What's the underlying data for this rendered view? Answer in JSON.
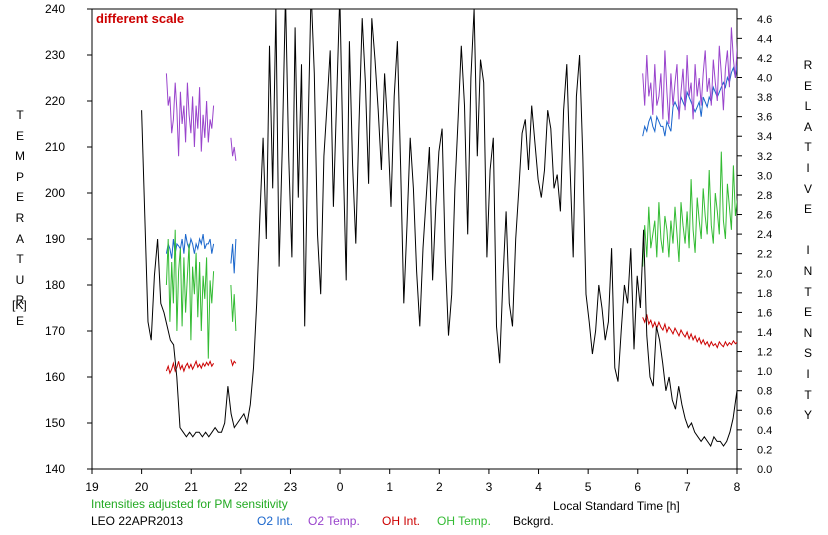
{
  "chart_data": {
    "type": "line",
    "station_date": "LEO 22APR2013",
    "note": "different scale",
    "note_color": "#cc0000",
    "subtitle": "Intensities adjusted for PM sensitivity",
    "subtitle_color": "#22aa22",
    "xlabel": "Local Standard Time [h]",
    "ylabel_left": "TEMPERATURE",
    "ylabel_left_unit": "[K]",
    "ylabel_right": "RELATIVE INTENSITY",
    "x_ticks": [
      "19",
      "20",
      "21",
      "22",
      "23",
      "0",
      "1",
      "2",
      "3",
      "4",
      "5",
      "6",
      "7",
      "8"
    ],
    "y_left_ticks": [
      "140",
      "150",
      "160",
      "170",
      "180",
      "190",
      "200",
      "210",
      "220",
      "230",
      "240"
    ],
    "y_right_ticks": [
      "0.0",
      "0.2",
      "0.4",
      "0.6",
      "0.8",
      "1.0",
      "1.2",
      "1.4",
      "1.6",
      "1.8",
      "2.0",
      "2.2",
      "2.4",
      "2.6",
      "2.8",
      "3.0",
      "3.2",
      "3.4",
      "3.6",
      "3.8",
      "4.0",
      "4.2",
      "4.4",
      "4.6"
    ],
    "xlim": [
      19,
      32
    ],
    "ylim_left": [
      140,
      240
    ],
    "ylim_right": [
      0.0,
      4.7
    ],
    "grid": false,
    "legend": [
      {
        "label": "O2 Int.",
        "color": "#1a66cc"
      },
      {
        "label": "O2 Temp.",
        "color": "#9944cc"
      },
      {
        "label": "OH Int.",
        "color": "#cc0000"
      },
      {
        "label": "OH Temp.",
        "color": "#33bb33"
      },
      {
        "label": "Bckgrd.",
        "color": "#000000"
      }
    ],
    "series": [
      {
        "name": "O2 Int.",
        "axis": "right",
        "color": "#1a66cc",
        "segments": [
          {
            "x0": 20.5,
            "x1": 21.45,
            "values": [
              2.2,
              2.3,
              2.25,
              2.15,
              2.35,
              2.2,
              2.3,
              2.28,
              2.25,
              2.35,
              2.2,
              2.4,
              2.3,
              2.25,
              2.35,
              2.3,
              2.2,
              2.3,
              2.25,
              2.35,
              2.3,
              2.4,
              2.25,
              2.3,
              2.3,
              2.35,
              2.2,
              2.3
            ]
          },
          {
            "x0": 21.8,
            "x1": 21.9,
            "values": [
              2.1,
              2.3,
              2.0,
              2.35
            ]
          },
          {
            "x0": 30.1,
            "x1": 32.05,
            "values": [
              3.4,
              3.5,
              3.45,
              3.55,
              3.6,
              3.5,
              3.45,
              3.6,
              3.55,
              3.5,
              3.5,
              3.4,
              3.55,
              3.5,
              3.45,
              3.7,
              3.75,
              3.7,
              3.65,
              3.8,
              3.75,
              3.7,
              3.85,
              3.8,
              3.75,
              3.7,
              3.65,
              3.7,
              3.75,
              3.6,
              3.8,
              3.75,
              3.7,
              3.8,
              3.75,
              3.9,
              3.85,
              3.8,
              3.85,
              3.9,
              3.95,
              3.9,
              4.0,
              3.95,
              4.05,
              4.1,
              4.0,
              4.15,
              4.2
            ]
          }
        ]
      },
      {
        "name": "O2 Temp.",
        "axis": "left",
        "color": "#9944cc",
        "segments": [
          {
            "x0": 20.5,
            "x1": 21.45,
            "values": [
              226,
              219,
              221,
              213,
              216,
              224,
              218,
              208,
              222,
              215,
              219,
              211,
              224,
              217,
              213,
              221,
              210,
              219,
              214,
              223,
              209,
              217,
              212,
              220,
              211,
              216,
              214,
              219
            ]
          },
          {
            "x0": 21.8,
            "x1": 21.9,
            "values": [
              212,
              208,
              210,
              207
            ]
          },
          {
            "x0": 30.1,
            "x1": 32.05,
            "values": [
              226,
              219,
              230,
              221,
              224,
              217,
              228,
              219,
              221,
              226,
              216,
              231,
              222,
              215,
              226,
              219,
              224,
              228,
              216,
              222,
              227,
              218,
              230,
              221,
              224,
              216,
              228,
              221,
              225,
              219,
              226,
              231,
              222,
              225,
              219,
              229,
              224,
              220,
              232,
              226,
              218,
              227,
              231,
              223,
              236,
              229,
              225,
              233,
              222
            ]
          }
        ]
      },
      {
        "name": "OH Int.",
        "axis": "right",
        "color": "#cc0000",
        "segments": [
          {
            "x0": 20.5,
            "x1": 21.45,
            "values": [
              1.0,
              1.05,
              0.98,
              1.02,
              1.08,
              1.0,
              1.04,
              1.1,
              1.02,
              1.06,
              1.0,
              1.05,
              1.08,
              1.03,
              1.07,
              1.02,
              1.06,
              1.1,
              1.04,
              1.07,
              1.03,
              1.08,
              1.05,
              1.09,
              1.06,
              1.1,
              1.05,
              1.08
            ]
          },
          {
            "x0": 21.8,
            "x1": 21.9,
            "values": [
              1.12,
              1.06,
              1.1,
              1.08
            ]
          },
          {
            "x0": 30.1,
            "x1": 32.05,
            "values": [
              1.55,
              1.5,
              1.58,
              1.48,
              1.52,
              1.45,
              1.5,
              1.44,
              1.5,
              1.45,
              1.42,
              1.48,
              1.4,
              1.45,
              1.42,
              1.38,
              1.44,
              1.4,
              1.36,
              1.42,
              1.38,
              1.35,
              1.4,
              1.33,
              1.38,
              1.32,
              1.36,
              1.3,
              1.34,
              1.28,
              1.32,
              1.27,
              1.3,
              1.25,
              1.3,
              1.26,
              1.28,
              1.24,
              1.3,
              1.27,
              1.25,
              1.3,
              1.26,
              1.29,
              1.27,
              1.31,
              1.28,
              1.3,
              1.32
            ]
          }
        ]
      },
      {
        "name": "OH Temp.",
        "axis": "left",
        "color": "#33bb33",
        "segments": [
          {
            "x0": 20.5,
            "x1": 21.45,
            "values": [
              180,
              190,
              172,
              185,
              176,
              192,
              170,
              183,
              188,
              171,
              186,
              174,
              182,
              189,
              168,
              184,
              178,
              187,
              173,
              185,
              170,
              182,
              177,
              186,
              164,
              181,
              176,
              183
            ]
          },
          {
            "x0": 21.8,
            "x1": 21.9,
            "values": [
              180,
              172,
              178,
              170
            ]
          },
          {
            "x0": 30.1,
            "x1": 32.05,
            "values": [
              184,
              193,
              186,
              197,
              188,
              191,
              194,
              186,
              198,
              190,
              187,
              195,
              192,
              186,
              194,
              189,
              197,
              191,
              185,
              198,
              193,
              189,
              196,
              188,
              203,
              192,
              187,
              199,
              194,
              190,
              201,
              195,
              191,
              205,
              193,
              189,
              200,
              196,
              191,
              209,
              194,
              190,
              202,
              197,
              192,
              206,
              195,
              199,
              197
            ]
          }
        ]
      },
      {
        "name": "Bckgrd.",
        "axis": "left",
        "color": "#000000",
        "x0": 20.0,
        "x1": 32.05,
        "values": [
          218,
          195,
          172,
          168,
          182,
          190,
          176,
          174,
          171,
          168,
          167,
          160,
          149,
          148,
          147,
          148,
          147,
          148,
          148,
          147,
          148,
          147,
          148,
          149,
          148,
          148,
          150,
          158,
          152,
          149,
          150,
          151,
          152,
          150,
          154,
          162,
          176,
          195,
          212,
          190,
          232,
          201,
          240,
          184,
          210,
          243,
          208,
          186,
          236,
          199,
          228,
          171,
          212,
          244,
          226,
          191,
          178,
          208,
          219,
          231,
          197,
          220,
          243,
          209,
          181,
          233,
          206,
          189,
          215,
          238,
          224,
          202,
          238,
          229,
          218,
          205,
          226,
          214,
          197,
          221,
          233,
          206,
          176,
          193,
          212,
          201,
          183,
          171,
          188,
          199,
          210,
          181,
          197,
          209,
          214,
          186,
          169,
          178,
          201,
          216,
          232,
          219,
          191,
          225,
          240,
          208,
          229,
          224,
          186,
          205,
          212,
          171,
          163,
          181,
          196,
          176,
          171,
          190,
          201,
          213,
          216,
          205,
          219,
          211,
          203,
          199,
          205,
          218,
          214,
          201,
          204,
          196,
          218,
          228,
          206,
          186,
          221,
          230,
          208,
          178,
          172,
          165,
          170,
          180,
          175,
          168,
          172,
          188,
          162,
          159,
          170,
          180,
          176,
          188,
          166,
          182,
          175,
          192,
          169,
          160,
          158,
          171,
          168,
          163,
          157,
          160,
          155,
          153,
          158,
          154,
          151,
          149,
          150,
          148,
          147,
          146,
          147,
          146,
          145,
          147,
          146,
          146,
          145,
          146,
          148,
          151,
          156,
          161
        ]
      }
    ]
  }
}
